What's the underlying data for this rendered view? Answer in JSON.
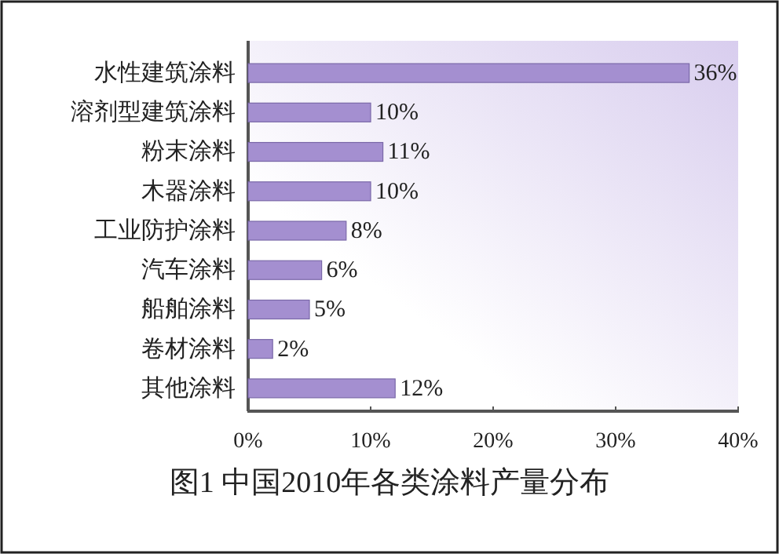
{
  "chart_data": {
    "type": "bar",
    "orientation": "horizontal",
    "title": "图1  中国2010年各类涂料产量分布",
    "categories": [
      "水性建筑涂料",
      "溶剂型建筑涂料",
      "粉末涂料",
      "木器涂料",
      "工业防护涂料",
      "汽车涂料",
      "船舶涂料",
      "卷材涂料",
      "其他涂料"
    ],
    "values": [
      36,
      10,
      11,
      10,
      8,
      6,
      5,
      2,
      12
    ],
    "value_labels": [
      "36%",
      "10%",
      "11%",
      "10%",
      "8%",
      "6%",
      "5%",
      "2%",
      "12%"
    ],
    "color": "#a48fd0",
    "xlim": [
      0,
      40
    ],
    "xticks": [
      {
        "value": 0,
        "label": "0%"
      },
      {
        "value": 10,
        "label": "10%"
      },
      {
        "value": 20,
        "label": "20%"
      },
      {
        "value": 30,
        "label": "30%"
      },
      {
        "value": 40,
        "label": "40%"
      }
    ]
  }
}
